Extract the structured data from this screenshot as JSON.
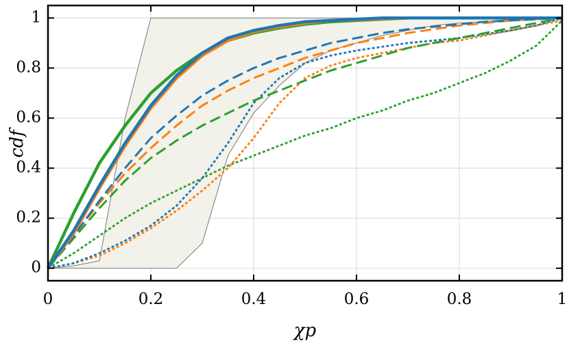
{
  "chart_data": {
    "type": "line",
    "x_label": "χp",
    "y_label": "cdf",
    "xlim": [
      0,
      1
    ],
    "ylim": [
      -0.05,
      1.05
    ],
    "xticks": [
      0,
      0.2,
      0.4,
      0.6,
      0.8,
      1
    ],
    "yticks": [
      0,
      0.2,
      0.4,
      0.6,
      0.8,
      1
    ],
    "grid": true,
    "x": [
      0,
      0.05,
      0.1,
      0.15,
      0.2,
      0.25,
      0.3,
      0.35,
      0.4,
      0.45,
      0.5,
      0.55,
      0.6,
      0.65,
      0.7,
      0.75,
      0.8,
      0.85,
      0.9,
      0.95,
      1
    ],
    "band": {
      "color": "#f3f2ea",
      "edge_color": "#777777",
      "upper": [
        0,
        0.01,
        0.03,
        0.6,
        1,
        1,
        1,
        1,
        1,
        1,
        1,
        1,
        1,
        1,
        1,
        1,
        1,
        1,
        1,
        1,
        1
      ],
      "lower": [
        0,
        0,
        0,
        0,
        0,
        0,
        0.1,
        0.45,
        0.62,
        0.73,
        0.82,
        0.87,
        0.9,
        0.93,
        0.95,
        0.97,
        0.98,
        0.985,
        0.995,
        1,
        1
      ]
    },
    "series": [
      {
        "color": "#2ca02c",
        "style": "dotted",
        "values": [
          0,
          0.06,
          0.13,
          0.2,
          0.26,
          0.31,
          0.36,
          0.41,
          0.45,
          0.49,
          0.53,
          0.56,
          0.6,
          0.63,
          0.67,
          0.7,
          0.74,
          0.78,
          0.83,
          0.89,
          0.99
        ]
      },
      {
        "color": "#ff7f0e",
        "style": "dotted",
        "values": [
          0,
          0.02,
          0.05,
          0.1,
          0.16,
          0.23,
          0.31,
          0.4,
          0.52,
          0.66,
          0.76,
          0.81,
          0.84,
          0.86,
          0.88,
          0.9,
          0.91,
          0.93,
          0.95,
          0.97,
          0.99
        ]
      },
      {
        "color": "#1f77b4",
        "style": "dotted",
        "values": [
          0,
          0.02,
          0.06,
          0.11,
          0.17,
          0.25,
          0.36,
          0.5,
          0.66,
          0.76,
          0.82,
          0.85,
          0.87,
          0.885,
          0.9,
          0.91,
          0.92,
          0.935,
          0.95,
          0.97,
          1
        ]
      },
      {
        "color": "#2ca02c",
        "style": "dashed",
        "values": [
          0,
          0.12,
          0.24,
          0.35,
          0.44,
          0.51,
          0.57,
          0.62,
          0.67,
          0.71,
          0.75,
          0.79,
          0.82,
          0.85,
          0.88,
          0.9,
          0.92,
          0.94,
          0.96,
          0.98,
          1
        ]
      },
      {
        "color": "#ff7f0e",
        "style": "dashed",
        "values": [
          0,
          0.13,
          0.26,
          0.38,
          0.48,
          0.57,
          0.65,
          0.71,
          0.76,
          0.8,
          0.84,
          0.87,
          0.9,
          0.92,
          0.94,
          0.955,
          0.97,
          0.98,
          0.99,
          0.995,
          1
        ]
      },
      {
        "color": "#1f77b4",
        "style": "dashed",
        "values": [
          0,
          0.13,
          0.27,
          0.4,
          0.52,
          0.61,
          0.69,
          0.75,
          0.8,
          0.84,
          0.87,
          0.9,
          0.92,
          0.94,
          0.955,
          0.965,
          0.975,
          0.985,
          0.99,
          0.995,
          1
        ]
      },
      {
        "color": "#2ca02c",
        "style": "solid",
        "values": [
          0,
          0.22,
          0.42,
          0.57,
          0.7,
          0.79,
          0.86,
          0.91,
          0.94,
          0.96,
          0.975,
          0.985,
          0.99,
          0.995,
          1,
          1,
          1,
          1,
          1,
          1,
          1
        ]
      },
      {
        "color": "#ff7f0e",
        "style": "solid",
        "values": [
          0,
          0.14,
          0.32,
          0.49,
          0.64,
          0.76,
          0.85,
          0.91,
          0.945,
          0.965,
          0.98,
          0.99,
          0.993,
          0.997,
          1,
          1,
          1,
          1,
          1,
          1,
          1
        ]
      },
      {
        "color": "#1f77b4",
        "style": "solid",
        "values": [
          0,
          0.15,
          0.33,
          0.5,
          0.65,
          0.77,
          0.86,
          0.92,
          0.95,
          0.97,
          0.985,
          0.99,
          0.995,
          1,
          1,
          1,
          1,
          1,
          1,
          1,
          1
        ]
      }
    ]
  }
}
